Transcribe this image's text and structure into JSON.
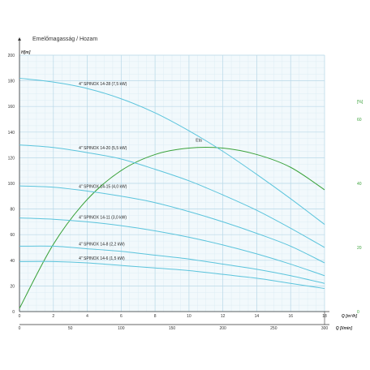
{
  "title": "Emelőmagasság / Hozam",
  "colors": {
    "curve": "#5bc4dc",
    "efficiency": "#3aa23a",
    "grid_major": "#b9d9e8",
    "grid_minor": "#deedf4",
    "plot_bg": "#f2f9fc",
    "axis": "#333333"
  },
  "chart_data": {
    "type": "line",
    "title": "Emelőmagasság / Hozam",
    "y_axis": {
      "label": "H[m]",
      "range": [
        0,
        200
      ],
      "ticks": [
        0,
        20,
        40,
        60,
        80,
        100,
        120,
        140,
        160,
        180,
        200
      ]
    },
    "x_axis_top": {
      "label": "Q [m³/h]",
      "range": [
        0,
        18
      ],
      "ticks": [
        0,
        2,
        4,
        6,
        8,
        10,
        12,
        14,
        16,
        18
      ]
    },
    "x_axis_bottom": {
      "label": "Q [l/min]",
      "range": [
        0,
        300
      ],
      "ticks": [
        0,
        50,
        100,
        150,
        200,
        250,
        300
      ]
    },
    "y2_axis": {
      "label": "[%]",
      "range": [
        0,
        80
      ],
      "ticks": [
        0,
        20,
        40,
        60
      ],
      "color": "#3aa23a"
    },
    "grid": true,
    "series": [
      {
        "name": "4\" SPINOX 14-28 (7,5 kW)",
        "x": [
          0,
          2,
          4,
          6,
          8,
          10,
          12,
          14,
          16,
          18
        ],
        "y": [
          182,
          179,
          174,
          166,
          155,
          141,
          125,
          107,
          88,
          68
        ]
      },
      {
        "name": "4\" SPINOX 14-20 (5,5 kW)",
        "x": [
          0,
          2,
          4,
          6,
          8,
          10,
          12,
          14,
          16,
          18
        ],
        "y": [
          130,
          128,
          124,
          119,
          111,
          102,
          91,
          79,
          65,
          50
        ]
      },
      {
        "name": "4\" SPINOX 14-15 (4,0 kW)",
        "x": [
          0,
          2,
          4,
          6,
          8,
          10,
          12,
          14,
          16,
          18
        ],
        "y": [
          98,
          97,
          94,
          90,
          85,
          78,
          70,
          61,
          51,
          38
        ]
      },
      {
        "name": "4\" SPINOX 14-11 (3,0 kW)",
        "x": [
          0,
          2,
          4,
          6,
          8,
          10,
          12,
          14,
          16,
          18
        ],
        "y": [
          73,
          72,
          70,
          67,
          63,
          58,
          52,
          45,
          37,
          28
        ]
      },
      {
        "name": "4\" SPINOX 14-8 (2,2 kW)",
        "x": [
          0,
          2,
          4,
          6,
          8,
          10,
          12,
          14,
          16,
          18
        ],
        "y": [
          51,
          51,
          49,
          47,
          44,
          41,
          37,
          33,
          28,
          22
        ]
      },
      {
        "name": "4\" SPINOX 14-6 (1,5 kW)",
        "x": [
          0,
          2,
          4,
          6,
          8,
          10,
          12,
          14,
          16,
          18
        ],
        "y": [
          39,
          39,
          38,
          36,
          34,
          32,
          29,
          26,
          22,
          18
        ]
      }
    ],
    "efficiency": {
      "name": "Eta",
      "x": [
        0,
        2,
        4,
        6,
        8,
        10,
        12,
        14,
        16,
        18
      ],
      "y": [
        1,
        21,
        35,
        44,
        49,
        51,
        51,
        49,
        45,
        38
      ]
    }
  }
}
